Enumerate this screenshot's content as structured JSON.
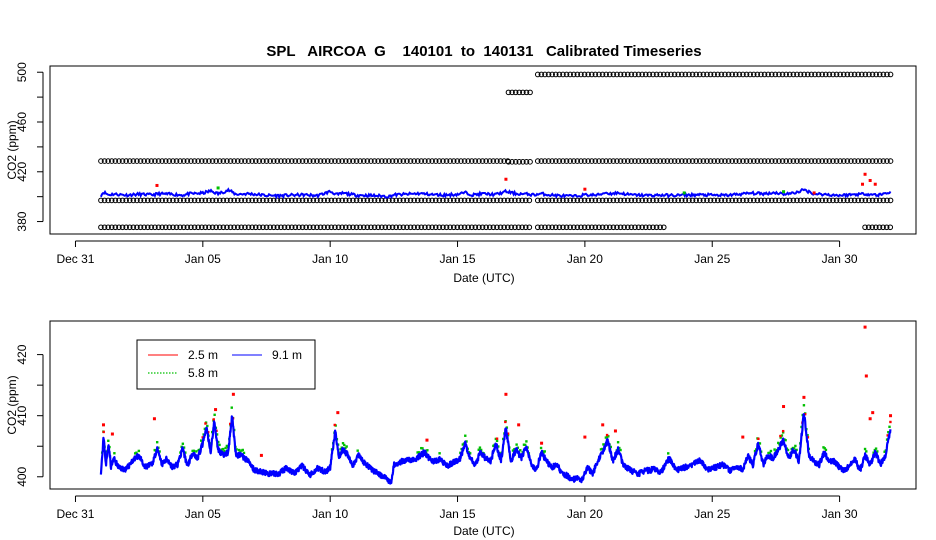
{
  "figure": {
    "title": "SPL   AIRCOA  G    140101  to  140131   Calibrated Timeseries"
  },
  "chart_data": [
    {
      "type": "scatter",
      "name": "calibrated-timeseries",
      "xlabel": "Date (UTC)",
      "ylabel": "CO2 (ppm)",
      "xlim": [
        -1,
        33
      ],
      "ylim": [
        370,
        505
      ],
      "x_tick_values": [
        0,
        5,
        10,
        15,
        20,
        25,
        30
      ],
      "x_tick_labels": [
        "Dec 31",
        "Jan 05",
        "Jan 10",
        "Jan 15",
        "Jan 20",
        "Jan 25",
        "Jan 30"
      ],
      "y_ticks": [
        380,
        400,
        420,
        440,
        460,
        480,
        500
      ],
      "y_tick_labels": [
        "380",
        "",
        "420",
        "",
        "460",
        "",
        "500"
      ],
      "standards": [
        {
          "name": "std-375",
          "color": "#000000",
          "segments": [
            [
              1.0,
              17.95,
              375.4
            ],
            [
              18.15,
              23.1,
              375.4
            ],
            [
              31.0,
              32.05,
              375.4
            ]
          ]
        },
        {
          "name": "std-397",
          "color": "#000000",
          "segments": [
            [
              1.0,
              17.95,
              397.0
            ],
            [
              18.15,
              32.05,
              397.0
            ]
          ]
        },
        {
          "name": "std-428",
          "color": "#000000",
          "segments": [
            [
              1.0,
              17.0,
              428.6
            ],
            [
              17.0,
              17.95,
              428.0
            ],
            [
              18.15,
              32.05,
              428.6
            ]
          ]
        },
        {
          "name": "std-482",
          "color": "#000000",
          "segments": [
            [
              17.0,
              17.9,
              483.8
            ]
          ]
        },
        {
          "name": "std-498",
          "color": "#000000",
          "segments": [
            [
              18.15,
              32.05,
              498.2
            ]
          ]
        }
      ],
      "series": [
        {
          "name": "2.5 m",
          "color": "#ff0000"
        },
        {
          "name": "5.8 m",
          "color": "#00c000"
        },
        {
          "name": "9.1 m",
          "color": "#0000ff"
        }
      ],
      "samples": {
        "x": [
          1.0,
          1.1,
          1.3,
          1.5,
          2.0,
          2.5,
          3.0,
          3.3,
          3.8,
          4.2,
          4.5,
          5.0,
          5.3,
          5.6,
          6.0,
          6.3,
          6.8,
          7.5,
          8.0,
          8.5,
          9.0,
          9.5,
          10.0,
          10.3,
          10.5,
          11.0,
          11.5,
          12.0,
          12.3,
          12.5,
          13.0,
          13.5,
          14.0,
          14.5,
          15.0,
          15.3,
          15.6,
          16.0,
          16.5,
          16.9,
          17.3,
          17.8,
          18.0,
          18.3,
          18.6,
          19.0,
          19.3,
          19.6,
          20.0,
          20.5,
          20.8,
          21.0,
          21.3,
          21.8,
          22.5,
          23.0,
          23.3,
          23.8,
          24.5,
          25.0,
          25.5,
          26.0,
          26.5,
          27.0,
          27.5,
          27.8,
          28.2,
          28.6,
          29.0,
          29.5,
          30.0,
          30.5,
          31.0,
          31.2,
          31.5,
          32.0
        ],
        "y": [
          401.0,
          407.0,
          402.0,
          403.5,
          401.5,
          403.0,
          402.0,
          404.0,
          403.0,
          401.5,
          404.0,
          405.0,
          409.0,
          404.0,
          410.5,
          403.0,
          404.0,
          401.0,
          400.5,
          401.5,
          402.0,
          400.5,
          408.0,
          402.0,
          405.0,
          401.5,
          401.0,
          400.0,
          399.0,
          402.0,
          403.0,
          404.5,
          402.5,
          401.5,
          403.0,
          406.0,
          402.0,
          404.0,
          402.5,
          408.0,
          404.0,
          403.0,
          402.0,
          404.0,
          402.0,
          400.5,
          400.0,
          399.5,
          402.0,
          401.5,
          406.0,
          404.0,
          405.5,
          402.0,
          401.0,
          401.5,
          401.0,
          401.5,
          402.0,
          401.5,
          401.0,
          403.0,
          405.0,
          404.0,
          406.0,
          403.5,
          405.0,
          411.0,
          404.0,
          402.5,
          401.0,
          402.5,
          404.0,
          403.0,
          401.5,
          407.0
        ]
      }
    },
    {
      "type": "scatter",
      "name": "tower-levels",
      "xlabel": "Date (UTC)",
      "ylabel": "CO2 (ppm)",
      "xlim": [
        -1,
        33
      ],
      "ylim": [
        398.0,
        425.5
      ],
      "x_tick_values": [
        0,
        5,
        10,
        15,
        20,
        25,
        30
      ],
      "x_tick_labels": [
        "Dec 31",
        "Jan 05",
        "Jan 10",
        "Jan 15",
        "Jan 20",
        "Jan 25",
        "Jan 30"
      ],
      "y_ticks": [
        400,
        405,
        410,
        415,
        420
      ],
      "y_tick_labels": [
        "400",
        "",
        "410",
        "",
        "420"
      ],
      "legend": {
        "entries": [
          {
            "label": "2.5 m",
            "color": "#ff0000",
            "style": "solid"
          },
          {
            "label": "5.8 m",
            "color": "#00c000",
            "style": "dotted"
          },
          {
            "label": "9.1 m",
            "color": "#0000ff",
            "style": "solid"
          }
        ]
      },
      "series": [
        {
          "name": "9.1 m",
          "color": "#0000ff",
          "role": "base",
          "x": [
            1.0,
            1.1,
            1.2,
            1.3,
            1.4,
            1.5,
            1.7,
            2.0,
            2.2,
            2.5,
            2.7,
            3.0,
            3.2,
            3.4,
            3.6,
            3.8,
            4.0,
            4.2,
            4.4,
            4.6,
            4.8,
            5.0,
            5.15,
            5.3,
            5.45,
            5.6,
            5.8,
            6.0,
            6.15,
            6.3,
            6.5,
            6.8,
            7.0,
            7.3,
            7.6,
            8.0,
            8.3,
            8.6,
            8.9,
            9.2,
            9.5,
            9.8,
            10.0,
            10.2,
            10.35,
            10.5,
            10.7,
            10.9,
            11.1,
            11.4,
            11.7,
            12.0,
            12.2,
            12.4,
            12.5,
            12.8,
            13.1,
            13.4,
            13.7,
            14.0,
            14.3,
            14.6,
            14.9,
            15.1,
            15.3,
            15.5,
            15.7,
            15.9,
            16.1,
            16.3,
            16.5,
            16.7,
            16.9,
            17.1,
            17.3,
            17.5,
            17.7,
            17.9,
            18.1,
            18.3,
            18.5,
            18.7,
            18.9,
            19.1,
            19.3,
            19.5,
            19.7,
            19.9,
            20.1,
            20.3,
            20.5,
            20.7,
            20.9,
            21.1,
            21.3,
            21.5,
            21.8,
            22.1,
            22.4,
            22.7,
            23.0,
            23.3,
            23.6,
            23.9,
            24.2,
            24.5,
            24.8,
            25.1,
            25.4,
            25.7,
            26.0,
            26.2,
            26.4,
            26.6,
            26.8,
            27.0,
            27.2,
            27.4,
            27.6,
            27.8,
            28.0,
            28.2,
            28.4,
            28.6,
            28.8,
            29.0,
            29.2,
            29.4,
            29.6,
            29.8,
            30.0,
            30.2,
            30.4,
            30.6,
            30.8,
            31.0,
            31.2,
            31.4,
            31.6,
            31.8,
            32.0
          ],
          "y": [
            400.8,
            406.5,
            402.0,
            405.5,
            401.5,
            403.0,
            401.5,
            401.2,
            402.5,
            403.5,
            401.5,
            402.0,
            404.5,
            402.0,
            403.0,
            401.5,
            402.0,
            404.5,
            401.8,
            404.0,
            403.0,
            405.5,
            408.0,
            404.0,
            409.0,
            404.5,
            403.5,
            404.0,
            410.0,
            403.5,
            403.5,
            402.5,
            401.2,
            400.8,
            400.5,
            400.5,
            401.5,
            400.5,
            401.8,
            400.2,
            401.5,
            400.8,
            401.5,
            407.5,
            403.0,
            404.5,
            403.5,
            401.8,
            403.5,
            402.0,
            401.0,
            400.2,
            399.8,
            399.0,
            402.0,
            402.5,
            402.8,
            403.0,
            404.0,
            402.5,
            402.8,
            401.8,
            402.5,
            403.0,
            405.5,
            403.0,
            402.0,
            404.0,
            403.0,
            402.5,
            405.5,
            402.5,
            408.0,
            402.5,
            404.5,
            403.0,
            405.0,
            401.8,
            401.2,
            404.0,
            402.5,
            401.5,
            402.0,
            400.5,
            400.2,
            399.5,
            399.8,
            399.5,
            401.5,
            400.5,
            402.5,
            404.0,
            406.0,
            402.5,
            404.5,
            402.0,
            401.0,
            400.5,
            401.0,
            401.2,
            400.8,
            403.0,
            401.0,
            401.5,
            402.0,
            402.8,
            401.2,
            401.5,
            402.0,
            401.0,
            401.5,
            401.2,
            403.5,
            401.8,
            405.5,
            402.0,
            403.5,
            403.0,
            404.5,
            406.0,
            403.0,
            404.5,
            402.5,
            410.5,
            403.5,
            402.5,
            402.0,
            404.0,
            402.5,
            402.5,
            401.5,
            401.0,
            402.0,
            403.0,
            401.0,
            403.5,
            402.0,
            404.0,
            402.0,
            403.5,
            408.0
          ]
        },
        {
          "name": "5.8 m",
          "color": "#00c000",
          "role": "offset",
          "offset": 0.6
        },
        {
          "name": "2.5 m",
          "color": "#ff0000",
          "role": "spikes",
          "x": [
            1.1,
            1.45,
            3.1,
            5.5,
            6.2,
            7.3,
            10.3,
            13.8,
            16.9,
            17.4,
            18.3,
            20.0,
            20.7,
            21.2,
            26.2,
            27.8,
            28.6,
            29.4,
            31.0,
            31.05,
            31.2,
            31.3,
            32.0
          ],
          "y": [
            408.5,
            407.0,
            409.5,
            411.0,
            413.5,
            403.5,
            410.5,
            406.0,
            413.5,
            408.5,
            405.5,
            406.5,
            408.5,
            407.5,
            406.5,
            411.5,
            413.0,
            404.0,
            424.5,
            416.5,
            409.5,
            410.5,
            410.0
          ]
        }
      ]
    }
  ]
}
